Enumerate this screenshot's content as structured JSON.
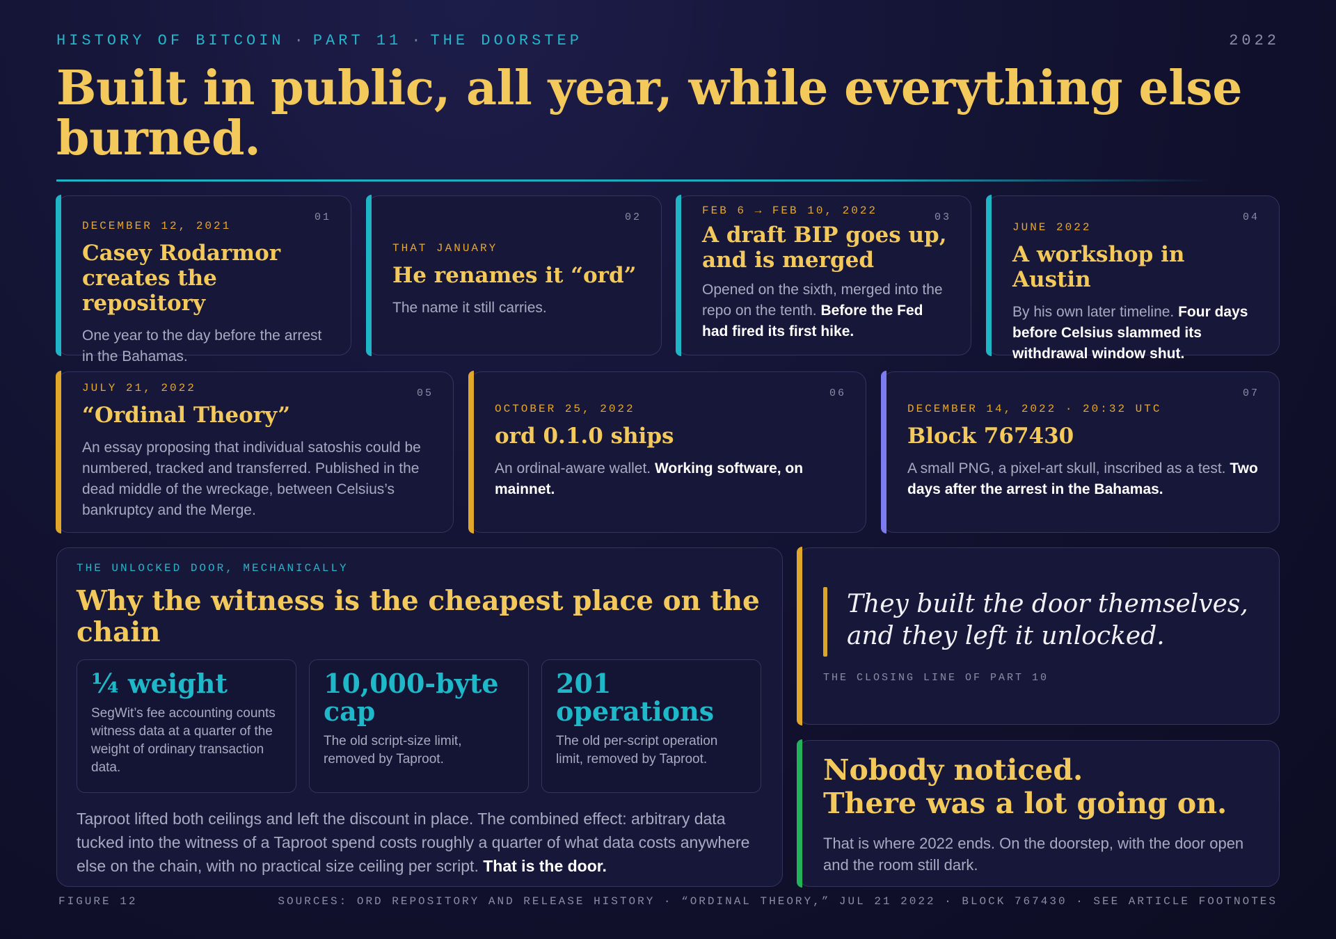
{
  "header": {
    "kicker_series": "HISTORY OF BITCOIN",
    "kicker_part": "PART 11",
    "kicker_chapter": "THE DOORSTEP",
    "separator": "·",
    "year": "2022",
    "title": "Built in public, all year, while everything else burned."
  },
  "colors": {
    "accent_cyan": "#1fb4c6",
    "accent_gold": "#e0a72a",
    "accent_purple": "#7c7cf0",
    "accent_green": "#22b35a",
    "headline_gold": "#f3c95c"
  },
  "timeline": [
    {
      "num": "01",
      "date": "DECEMBER 12, 2021",
      "title": "Casey Rodarmor creates the repository",
      "body": "One year to the day before the arrest in the Bahamas.",
      "body_bold": ""
    },
    {
      "num": "02",
      "date": "THAT JANUARY",
      "title": "He renames it “ord”",
      "body": "The name it still carries.",
      "body_bold": ""
    },
    {
      "num": "03",
      "date": "FEB 6 → FEB 10, 2022",
      "title": "A draft BIP goes up, and is merged",
      "body": "Opened on the sixth, merged into the repo on the tenth. ",
      "body_bold": "Before the Fed had fired its first hike."
    },
    {
      "num": "04",
      "date": "JUNE 2022",
      "title": "A workshop in Austin",
      "body": "By his own later timeline. ",
      "body_bold": "Four days before Celsius slammed its withdrawal window shut."
    },
    {
      "num": "05",
      "date": "JULY 21, 2022",
      "title": "“Ordinal Theory”",
      "body": "An essay proposing that individual satoshis could be numbered, tracked and transferred. Published in the dead middle of the wreckage, between Celsius’s bankruptcy and the Merge.",
      "body_bold": ""
    },
    {
      "num": "06",
      "date": "OCTOBER 25, 2022",
      "title": "ord 0.1.0 ships",
      "body": "An ordinal-aware wallet. ",
      "body_bold": "Working software, on mainnet."
    },
    {
      "num": "07",
      "date": "DECEMBER 14, 2022 · 20:32 UTC",
      "title": "Block 767430",
      "body": "A small PNG, a pixel-art skull, inscribed as a test. ",
      "body_bold": "Two days after the arrest in the Bahamas."
    }
  ],
  "mechanics": {
    "kicker": "THE UNLOCKED DOOR, MECHANICALLY",
    "title": "Why the witness is the cheapest place on the chain",
    "stats": [
      {
        "value": "¼ weight",
        "desc": "SegWit’s fee accounting counts witness data at a quarter of the weight of ordinary transaction data."
      },
      {
        "value": "10,000-byte cap",
        "desc": "The old script-size limit, removed by Taproot."
      },
      {
        "value": "201 operations",
        "desc": "The old per-script operation limit, removed by Taproot."
      }
    ],
    "summary": "Taproot lifted both ceilings and left the discount in place. The combined effect: arbitrary data tucked into the witness of a Taproot spend costs roughly a quarter of what data costs anywhere else on the chain, with no practical size ceiling per script. ",
    "summary_bold": "That is the door."
  },
  "quote": {
    "text": "They built the door themselves, and they left it unlocked.",
    "caption": "THE CLOSING LINE OF PART 10"
  },
  "ending": {
    "title_line1": "Nobody noticed.",
    "title_line2": "There was a lot going on.",
    "body": "That is where 2022 ends. On the doorstep, with the door open and the room still dark."
  },
  "footer": {
    "figure": "FIGURE 12",
    "sources": "SOURCES: ORD REPOSITORY AND RELEASE HISTORY · “ORDINAL THEORY,” JUL 21 2022 · BLOCK 767430 · SEE ARTICLE FOOTNOTES"
  }
}
